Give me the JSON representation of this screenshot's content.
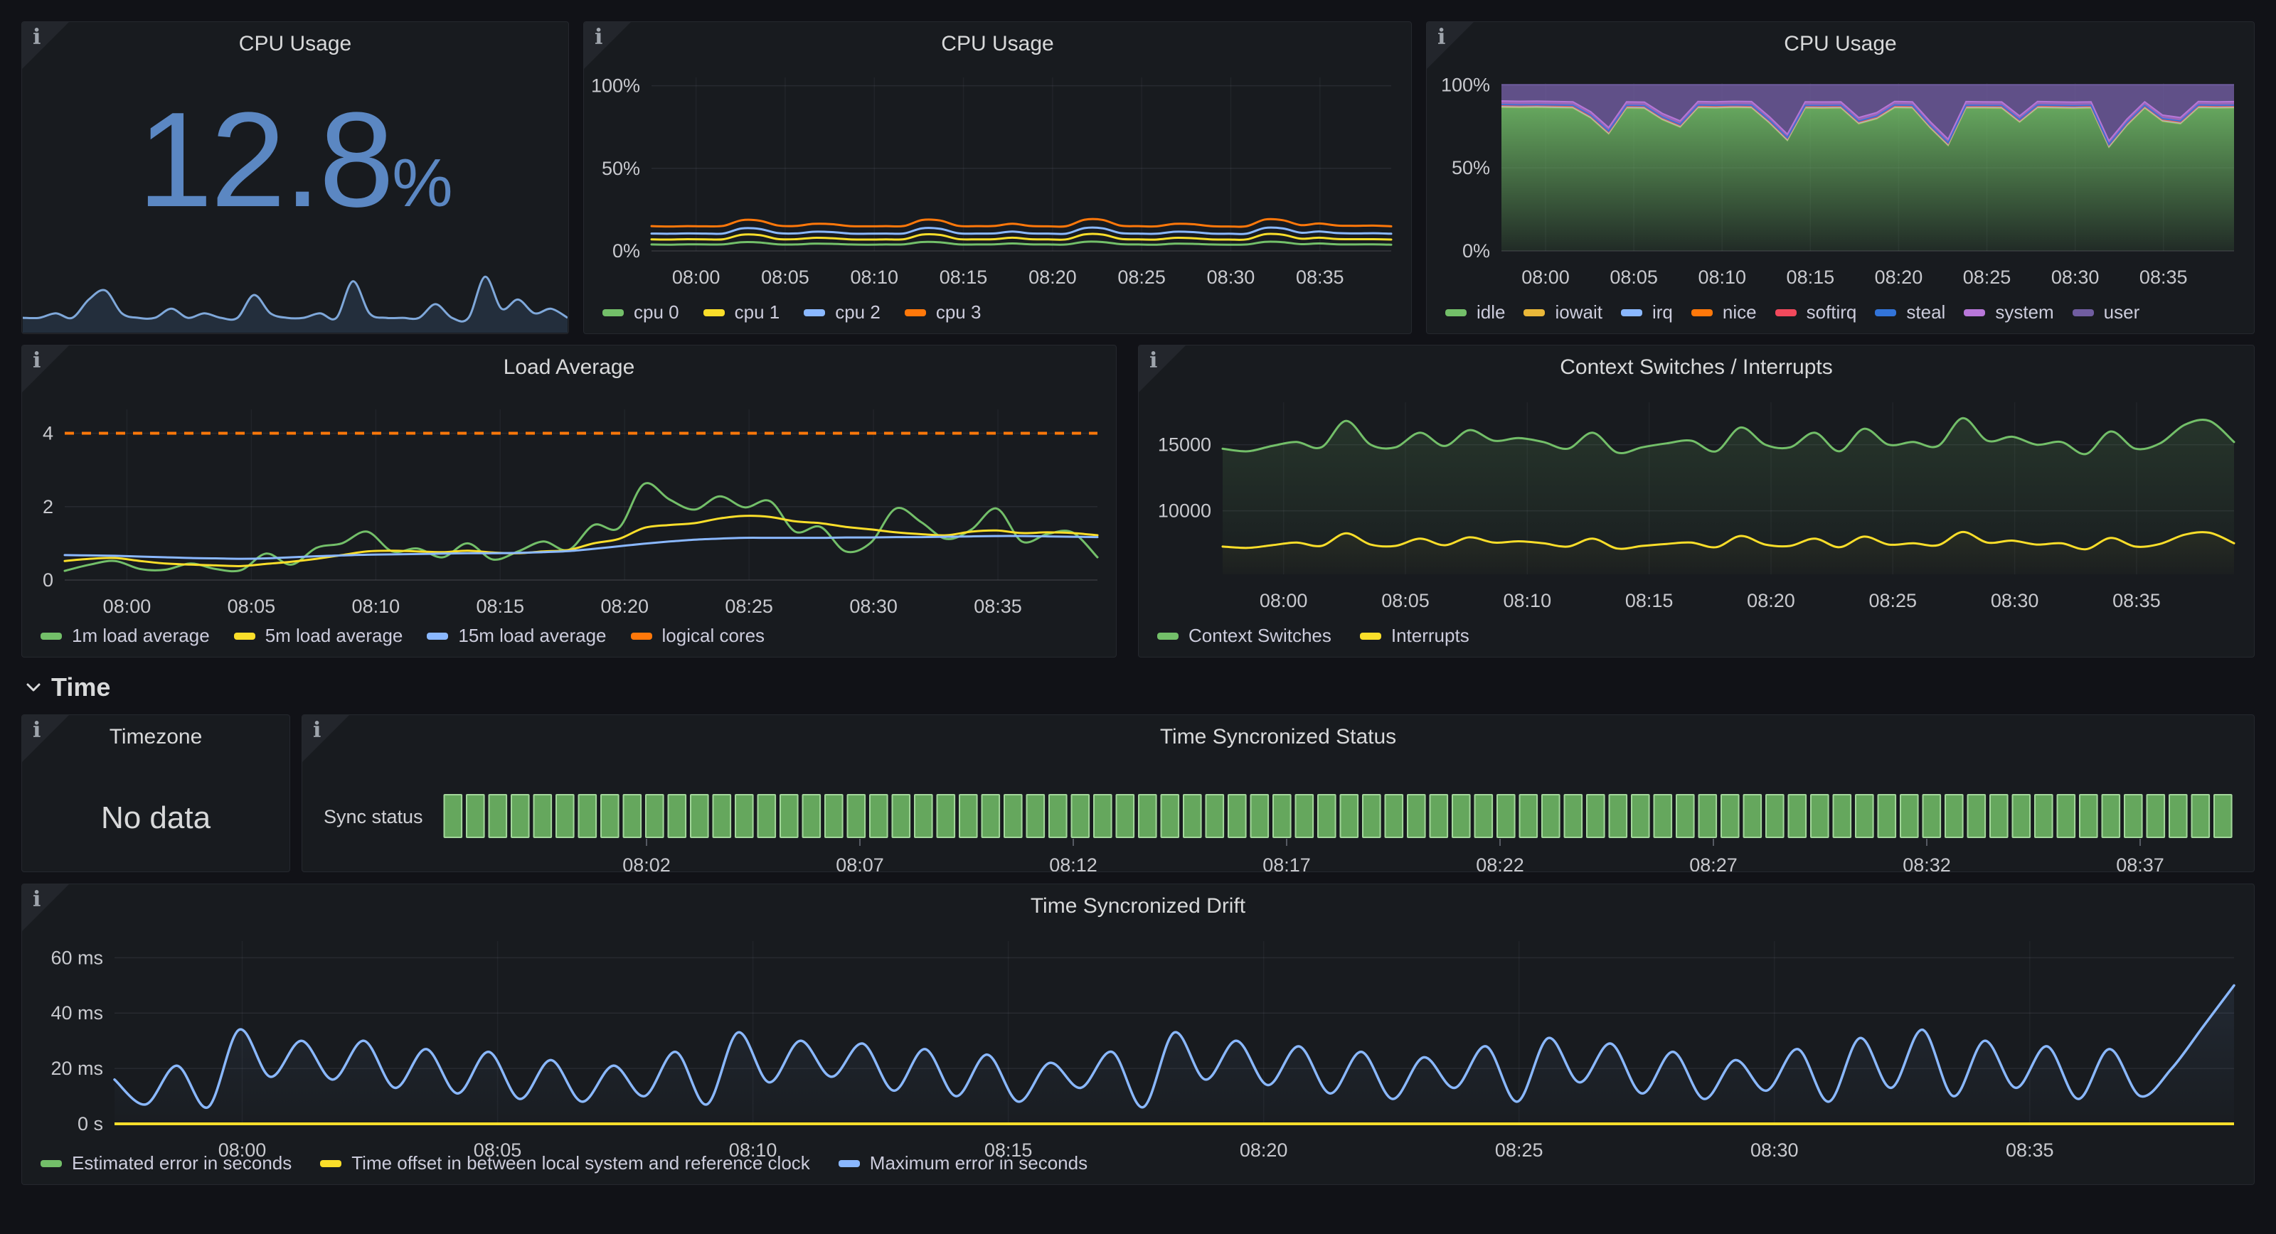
{
  "page": {
    "background": "#111217",
    "panel_background": "#181b1f",
    "accent_blue": "#5b87c2"
  },
  "section_header": {
    "label": "Time"
  },
  "panels": [
    {
      "id": "cpu-stat",
      "title": "CPU Usage",
      "value": "12.8",
      "unit": "%"
    },
    {
      "id": "cpu-per-core",
      "title": "CPU Usage"
    },
    {
      "id": "cpu-stacked",
      "title": "CPU Usage"
    },
    {
      "id": "load-average",
      "title": "Load Average"
    },
    {
      "id": "context-switches",
      "title": "Context Switches / Interrupts"
    },
    {
      "id": "timezone",
      "title": "Timezone",
      "no_data_text": "No data"
    },
    {
      "id": "sync-status",
      "title": "Time Syncronized Status",
      "row_label": "Sync status"
    },
    {
      "id": "sync-drift",
      "title": "Time Syncronized Drift"
    }
  ],
  "chart_data": [
    {
      "id": "cpu-stat-spark",
      "type": "sparkline",
      "title": "CPU Usage (current)",
      "value_pct": 12.8,
      "color": "#7fa8da",
      "fill_color": "#5b87c2",
      "ylim": [
        0,
        14
      ],
      "values": [
        2,
        2,
        3,
        2,
        6,
        8,
        3,
        2,
        2,
        4,
        2,
        3,
        2,
        2,
        7,
        3,
        2,
        2,
        3,
        2,
        10,
        3,
        2,
        2,
        2,
        5,
        2,
        2,
        11,
        4,
        6,
        3,
        4,
        2
      ]
    },
    {
      "id": "cpu-per-core",
      "type": "line",
      "title": "CPU Usage",
      "x_range": [
        -2.5,
        39
      ],
      "ylim": [
        0,
        105
      ],
      "x_ticks": [
        {
          "m": 0,
          "label": "08:00"
        },
        {
          "m": 5,
          "label": "08:05"
        },
        {
          "m": 10,
          "label": "08:10"
        },
        {
          "m": 15,
          "label": "08:15"
        },
        {
          "m": 20,
          "label": "08:20"
        },
        {
          "m": 25,
          "label": "08:25"
        },
        {
          "m": 30,
          "label": "08:30"
        },
        {
          "m": 35,
          "label": "08:35"
        }
      ],
      "y_ticks": [
        {
          "v": 0,
          "label": "0%"
        },
        {
          "v": 50,
          "label": "50%"
        },
        {
          "v": 100,
          "label": "100%"
        }
      ],
      "series": [
        {
          "name": "cpu 0",
          "color": "#73BF69",
          "values": [
            3.9,
            3.8,
            4,
            3.9,
            4,
            5.3,
            5.1,
            4,
            3.9,
            4.4,
            4.3,
            3.9,
            3.8,
            3.9,
            4,
            5.4,
            5.2,
            4,
            3.9,
            4,
            4.5,
            4,
            3.9,
            3.9,
            5.5,
            5.4,
            4.1,
            3.9,
            3.8,
            4.4,
            4.3,
            3.9,
            3.8,
            3.9,
            5.5,
            5.3,
            4.1,
            4.5,
            4,
            3.9,
            4,
            3.8
          ]
        },
        {
          "name": "cpu 1",
          "color": "#FADE2A",
          "values": [
            7,
            6.9,
            7.1,
            7,
            7.1,
            9.8,
            9.6,
            7.2,
            7.1,
            7.9,
            7.7,
            7,
            6.9,
            7,
            7.1,
            9.9,
            9.7,
            7.2,
            7,
            7.1,
            8,
            7.1,
            7,
            7,
            10,
            9.9,
            7.3,
            7,
            6.9,
            7.9,
            7.7,
            7,
            6.9,
            7,
            10.1,
            9.8,
            7.4,
            8,
            7.2,
            7.1,
            7.1,
            6.9
          ]
        },
        {
          "name": "cpu 2",
          "color": "#8AB8FF",
          "values": [
            10.5,
            10.4,
            10.6,
            10.5,
            10.6,
            13.6,
            13.3,
            10.8,
            10.6,
            11.6,
            11.4,
            10.5,
            10.4,
            10.5,
            10.6,
            13.7,
            13.4,
            10.7,
            10.5,
            10.6,
            11.7,
            10.6,
            10.5,
            10.5,
            13.8,
            13.7,
            10.8,
            10.5,
            10.4,
            11.6,
            11.4,
            10.5,
            10.4,
            10.5,
            13.9,
            13.6,
            11,
            11.8,
            10.8,
            10.6,
            10.7,
            10.4
          ]
        },
        {
          "name": "cpu 3",
          "color": "#FF780A",
          "values": [
            15,
            14.8,
            15,
            14.9,
            15.2,
            18.6,
            18.3,
            15.4,
            15.1,
            16.4,
            16.2,
            15,
            14.9,
            15,
            15.1,
            18.7,
            18.4,
            15.2,
            15,
            15.1,
            16.5,
            15.1,
            14.9,
            15,
            18.9,
            18.8,
            15.3,
            15,
            14.9,
            16.4,
            16.2,
            15,
            14.8,
            15,
            19,
            18.6,
            15.6,
            16.6,
            15.4,
            15.2,
            15.3,
            14.9
          ]
        }
      ]
    },
    {
      "id": "cpu-stacked",
      "type": "area-stacked",
      "title": "CPU Usage",
      "x_range": [
        -2.5,
        39
      ],
      "ylim": [
        0,
        101
      ],
      "x_ticks": [
        {
          "m": 0,
          "label": "08:00"
        },
        {
          "m": 5,
          "label": "08:05"
        },
        {
          "m": 10,
          "label": "08:10"
        },
        {
          "m": 15,
          "label": "08:15"
        },
        {
          "m": 20,
          "label": "08:20"
        },
        {
          "m": 25,
          "label": "08:25"
        },
        {
          "m": 30,
          "label": "08:30"
        },
        {
          "m": 35,
          "label": "08:35"
        }
      ],
      "y_ticks": [
        {
          "v": 0,
          "label": "0%"
        },
        {
          "v": 50,
          "label": "50%"
        },
        {
          "v": 100,
          "label": "100%"
        }
      ],
      "series": [
        {
          "name": "idle",
          "color": "#73BF69",
          "gradient": true,
          "values": [
            86.5,
            86.3,
            86.4,
            86.2,
            86,
            80,
            70.5,
            86,
            85.8,
            79,
            74.5,
            86.2,
            86,
            86.3,
            86.1,
            77,
            66.5,
            86,
            85.9,
            86,
            76.5,
            79.5,
            86.2,
            86,
            74,
            63.5,
            86.1,
            86,
            85.9,
            77.5,
            86.2,
            86,
            85.8,
            86,
            62.5,
            75.5,
            86,
            78,
            76.5,
            86.2,
            86,
            86.1
          ]
        },
        {
          "name": "iowait",
          "color": "#EAB839",
          "constant": 0.3
        },
        {
          "name": "irq",
          "color": "#8AB8FF",
          "constant": 0.3
        },
        {
          "name": "nice",
          "color": "#FF780A",
          "constant": 0.5
        },
        {
          "name": "softirq",
          "color": "#F2495C",
          "constant": 0.25
        },
        {
          "name": "steal",
          "color": "#3274D9",
          "constant": 0.25
        },
        {
          "name": "system",
          "color": "#B877D9",
          "constant": 2.2
        },
        {
          "name": "user",
          "color": "#705DA0",
          "remainder_to": 100
        }
      ]
    },
    {
      "id": "load-average",
      "type": "line",
      "title": "Load Average",
      "x_range": [
        -2.5,
        39
      ],
      "ylim": [
        0,
        4.65
      ],
      "x_ticks": [
        {
          "m": 0,
          "label": "08:00"
        },
        {
          "m": 5,
          "label": "08:05"
        },
        {
          "m": 10,
          "label": "08:10"
        },
        {
          "m": 15,
          "label": "08:15"
        },
        {
          "m": 20,
          "label": "08:20"
        },
        {
          "m": 25,
          "label": "08:25"
        },
        {
          "m": 30,
          "label": "08:30"
        },
        {
          "m": 35,
          "label": "08:35"
        }
      ],
      "y_ticks": [
        {
          "v": 0,
          "label": "0"
        },
        {
          "v": 2,
          "label": "2"
        },
        {
          "v": 4,
          "label": "4"
        }
      ],
      "series": [
        {
          "name": "1m load average",
          "color": "#73BF69",
          "values": [
            0.25,
            0.42,
            0.52,
            0.3,
            0.28,
            0.45,
            0.3,
            0.27,
            0.72,
            0.42,
            0.88,
            1,
            1.32,
            0.78,
            0.86,
            0.62,
            1,
            0.56,
            0.78,
            1.05,
            0.82,
            1.5,
            1.42,
            2.62,
            2.2,
            1.92,
            2.28,
            1.98,
            2.15,
            1.32,
            1.45,
            0.78,
            1.02,
            1.95,
            1.58,
            1.12,
            1.38,
            1.95,
            1.05,
            1.25,
            1.3,
            0.62
          ]
        },
        {
          "name": "5m load average",
          "color": "#FADE2A",
          "values": [
            0.52,
            0.58,
            0.6,
            0.52,
            0.45,
            0.42,
            0.4,
            0.38,
            0.44,
            0.5,
            0.58,
            0.68,
            0.78,
            0.8,
            0.78,
            0.76,
            0.8,
            0.75,
            0.73,
            0.78,
            0.82,
            1,
            1.12,
            1.42,
            1.5,
            1.55,
            1.68,
            1.75,
            1.72,
            1.6,
            1.55,
            1.45,
            1.38,
            1.3,
            1.25,
            1.22,
            1.32,
            1.35,
            1.28,
            1.3,
            1.28,
            1.22
          ]
        },
        {
          "name": "15m load average",
          "color": "#8AB8FF",
          "values": [
            0.68,
            0.67,
            0.66,
            0.64,
            0.62,
            0.6,
            0.59,
            0.58,
            0.59,
            0.62,
            0.65,
            0.67,
            0.69,
            0.7,
            0.71,
            0.72,
            0.73,
            0.73,
            0.74,
            0.76,
            0.79,
            0.85,
            0.92,
            0.99,
            1.05,
            1.1,
            1.13,
            1.15,
            1.15,
            1.15,
            1.15,
            1.16,
            1.16,
            1.17,
            1.17,
            1.18,
            1.19,
            1.2,
            1.2,
            1.19,
            1.18,
            1.17
          ]
        },
        {
          "name": "logical cores",
          "color": "#FF780A",
          "constant": 4,
          "dash": [
            13,
            11
          ],
          "width": 4
        }
      ]
    },
    {
      "id": "context-switches",
      "type": "line",
      "title": "Context Switches / Interrupts",
      "x_range": [
        -2.5,
        39
      ],
      "ylim": [
        5200,
        18200
      ],
      "x_ticks": [
        {
          "m": 0,
          "label": "08:00"
        },
        {
          "m": 5,
          "label": "08:05"
        },
        {
          "m": 10,
          "label": "08:10"
        },
        {
          "m": 15,
          "label": "08:15"
        },
        {
          "m": 20,
          "label": "08:20"
        },
        {
          "m": 25,
          "label": "08:25"
        },
        {
          "m": 30,
          "label": "08:30"
        },
        {
          "m": 35,
          "label": "08:35"
        }
      ],
      "y_ticks": [
        {
          "v": 10000,
          "label": "10000"
        },
        {
          "v": 15000,
          "label": "15000"
        }
      ],
      "series": [
        {
          "name": "Context Switches",
          "color": "#73BF69",
          "fill_opacity": 0.16,
          "values": [
            14700,
            14500,
            14900,
            15200,
            14800,
            16800,
            15000,
            14800,
            15900,
            14900,
            16100,
            15300,
            15500,
            15200,
            14700,
            15900,
            14400,
            14800,
            15100,
            15300,
            14500,
            16300,
            15000,
            14800,
            15900,
            14500,
            16200,
            15000,
            15200,
            14900,
            17000,
            15300,
            15600,
            15000,
            15200,
            14300,
            16000,
            14700,
            15100,
            16500,
            16800,
            15200
          ]
        },
        {
          "name": "Interrupts",
          "color": "#FADE2A",
          "fill_opacity": 0.05,
          "values": [
            7300,
            7200,
            7400,
            7600,
            7350,
            8300,
            7450,
            7350,
            7900,
            7400,
            8000,
            7600,
            7700,
            7550,
            7300,
            7900,
            7150,
            7350,
            7500,
            7600,
            7250,
            8100,
            7450,
            7350,
            7900,
            7250,
            8050,
            7450,
            7550,
            7400,
            8400,
            7600,
            7750,
            7450,
            7550,
            7100,
            7950,
            7300,
            7500,
            8200,
            8350,
            7550
          ]
        }
      ]
    },
    {
      "id": "sync-status",
      "type": "status-history",
      "title": "Time Syncronized Status",
      "row_label": "Sync status",
      "x_range": [
        -2.8,
        39.2
      ],
      "bar_count": 80,
      "bar_state": "ok",
      "bar_color": "#73BF69",
      "bar_border": "#A3D79B",
      "x_ticks": [
        {
          "m": 2,
          "label": "08:02"
        },
        {
          "m": 7,
          "label": "08:07"
        },
        {
          "m": 12,
          "label": "08:12"
        },
        {
          "m": 17,
          "label": "08:17"
        },
        {
          "m": 22,
          "label": "08:22"
        },
        {
          "m": 27,
          "label": "08:27"
        },
        {
          "m": 32,
          "label": "08:32"
        },
        {
          "m": 37,
          "label": "08:37"
        }
      ]
    },
    {
      "id": "sync-drift",
      "type": "line",
      "title": "Time Syncronized Drift",
      "x_range": [
        -2.5,
        39
      ],
      "ylim": [
        0,
        66
      ],
      "x_ticks": [
        {
          "m": 0,
          "label": "08:00"
        },
        {
          "m": 5,
          "label": "08:05"
        },
        {
          "m": 10,
          "label": "08:10"
        },
        {
          "m": 15,
          "label": "08:15"
        },
        {
          "m": 20,
          "label": "08:20"
        },
        {
          "m": 25,
          "label": "08:25"
        },
        {
          "m": 30,
          "label": "08:30"
        },
        {
          "m": 35,
          "label": "08:35"
        }
      ],
      "y_ticks": [
        {
          "v": 0,
          "label": "0 s"
        },
        {
          "v": 20,
          "label": "20 ms"
        },
        {
          "v": 40,
          "label": "40 ms"
        },
        {
          "v": 60,
          "label": "60 ms"
        }
      ],
      "series": [
        {
          "name": "Estimated error in seconds",
          "color": "#73BF69",
          "constant": 0,
          "width": 3
        },
        {
          "name": "Time offset in between local system and reference clock",
          "color": "#FADE2A",
          "constant": 0,
          "width": 4
        },
        {
          "name": "Maximum error in seconds",
          "color": "#8AB8FF",
          "width": 3.5,
          "fill_opacity": 0.09,
          "values": [
            16,
            7,
            21,
            6,
            34,
            17,
            30,
            16,
            30,
            13,
            27,
            11,
            26,
            9,
            23,
            8,
            21,
            10,
            26,
            7,
            33,
            15,
            30,
            17,
            29,
            12,
            27,
            10,
            25,
            8,
            22,
            13,
            26,
            6,
            33,
            16,
            30,
            14,
            28,
            11,
            26,
            9,
            24,
            13,
            28,
            8,
            31,
            15,
            29,
            11,
            26,
            9,
            23,
            12,
            27,
            8,
            31,
            13,
            34,
            10,
            30,
            13,
            28,
            9,
            27,
            10,
            20,
            35,
            50
          ]
        }
      ]
    }
  ]
}
